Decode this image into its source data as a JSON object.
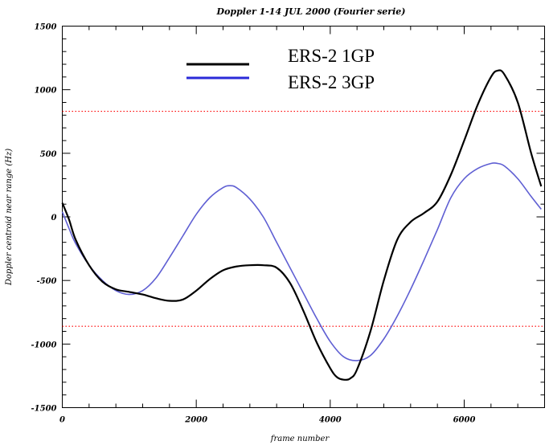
{
  "chart_data": {
    "type": "line",
    "title": "Doppler   1-14 JUL 2000 (Fourier serie)",
    "xlabel": "frame number",
    "ylabel": "Doppler centroid near range (Hz)",
    "xlim": [
      0,
      7200
    ],
    "ylim": [
      -1500,
      1500
    ],
    "x_ticks": [
      "0",
      "2000",
      "4000",
      "6000"
    ],
    "y_ticks": [
      "1500",
      "1000",
      "500",
      "0",
      "-500",
      "-1000",
      "-1500"
    ],
    "grid": false,
    "legend_position": "top-center",
    "series": [
      {
        "name": "ERS-2  1GP",
        "color": "#000000",
        "x": [
          0,
          100,
          200,
          400,
          600,
          800,
          1000,
          1200,
          1400,
          1600,
          1800,
          2000,
          2200,
          2400,
          2600,
          2800,
          3000,
          3200,
          3400,
          3600,
          3800,
          4000,
          4100,
          4200,
          4300,
          4400,
          4600,
          4800,
          5000,
          5200,
          5400,
          5600,
          5800,
          6000,
          6200,
          6400,
          6500,
          6600,
          6800,
          7000,
          7150
        ],
        "y": [
          110,
          -20,
          -180,
          -380,
          -510,
          -570,
          -590,
          -610,
          -640,
          -660,
          -650,
          -580,
          -490,
          -420,
          -390,
          -380,
          -380,
          -400,
          -520,
          -740,
          -990,
          -1190,
          -1260,
          -1280,
          -1270,
          -1200,
          -900,
          -500,
          -180,
          -40,
          30,
          120,
          330,
          600,
          880,
          1100,
          1150,
          1120,
          900,
          500,
          240
        ]
      },
      {
        "name": "ERS-2  3GP",
        "color": "#5f5fd3",
        "x": [
          0,
          100,
          200,
          400,
          600,
          800,
          1000,
          1200,
          1400,
          1600,
          1800,
          2000,
          2200,
          2400,
          2500,
          2600,
          2800,
          3000,
          3200,
          3400,
          3600,
          3800,
          4000,
          4200,
          4400,
          4600,
          4800,
          5000,
          5200,
          5400,
          5600,
          5800,
          6000,
          6200,
          6400,
          6500,
          6600,
          6800,
          7000,
          7150
        ],
        "y": [
          40,
          -90,
          -210,
          -380,
          -500,
          -580,
          -610,
          -580,
          -480,
          -320,
          -150,
          20,
          150,
          230,
          245,
          230,
          140,
          0,
          -200,
          -400,
          -600,
          -800,
          -980,
          -1100,
          -1130,
          -1090,
          -960,
          -780,
          -570,
          -340,
          -100,
          150,
          300,
          380,
          420,
          420,
          400,
          300,
          160,
          60
        ]
      }
    ],
    "reference_lines": [
      {
        "y": 830,
        "color": "#ff0000",
        "style": "dotted"
      },
      {
        "y": -860,
        "color": "#ff0000",
        "style": "dotted"
      }
    ]
  }
}
